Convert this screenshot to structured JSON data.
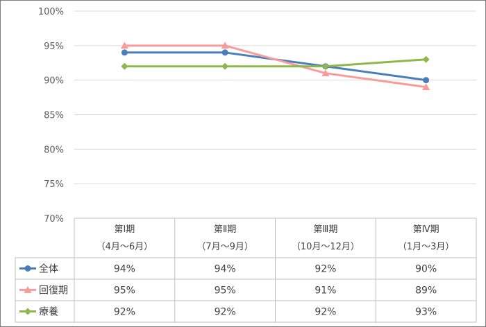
{
  "chart_data": {
    "type": "line",
    "categories": [
      {
        "line1": "第Ⅰ期",
        "line2": "（4月～6月）"
      },
      {
        "line1": "第Ⅱ期",
        "line2": "（7月～9月）"
      },
      {
        "line1": "第Ⅲ期",
        "line2": "（10月～12月）"
      },
      {
        "line1": "第Ⅳ期",
        "line2": "（1月～3月）"
      }
    ],
    "series": [
      {
        "name": "全体",
        "values": [
          94,
          94,
          92,
          90
        ],
        "labels": [
          "94%",
          "94%",
          "92%",
          "90%"
        ],
        "color": "#4A7EBB",
        "marker": "circle"
      },
      {
        "name": "回復期",
        "values": [
          95,
          95,
          91,
          89
        ],
        "labels": [
          "95%",
          "95%",
          "91%",
          "89%"
        ],
        "color": "#F79B9B",
        "marker": "triangle"
      },
      {
        "name": "療養",
        "values": [
          92,
          92,
          92,
          93
        ],
        "labels": [
          "92%",
          "92%",
          "92%",
          "93%"
        ],
        "color": "#8DB64B",
        "marker": "diamond"
      }
    ],
    "yticks": [
      "70%",
      "75%",
      "80%",
      "85%",
      "90%",
      "95%",
      "100%"
    ],
    "ylim": [
      70,
      100
    ],
    "grid": true,
    "legend": "data-table"
  }
}
